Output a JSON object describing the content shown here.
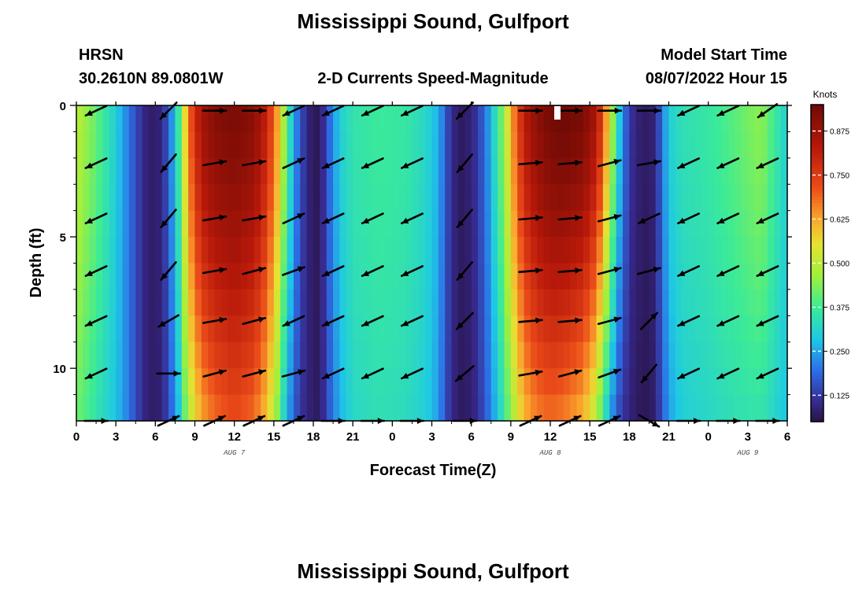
{
  "header": {
    "title": "Mississippi Sound, Gulfport",
    "station": "HRSN",
    "coords": "30.2610N  89.0801W",
    "subtitle": "2-D Currents Speed-Magnitude",
    "model_label": "Model Start Time",
    "model_time": "08/07/2022 Hour 15",
    "bottom_title": "Mississippi Sound, Gulfport"
  },
  "chart_data": {
    "type": "heatmap",
    "title": "2-D Currents Speed-Magnitude",
    "xlabel": "Forecast Time(Z)",
    "ylabel": "Depth (ft)",
    "x_range_hours": [
      0,
      54
    ],
    "y_range_ft": [
      0,
      12
    ],
    "y_inverted": true,
    "x_ticks": [
      "0",
      "3",
      "6",
      "9",
      "12",
      "15",
      "18",
      "21",
      "0",
      "3",
      "6",
      "9",
      "12",
      "15",
      "18",
      "21",
      "0",
      "3",
      "6"
    ],
    "y_ticks": [
      "0",
      "5",
      "10"
    ],
    "y_tick_values": [
      0,
      5,
      10
    ],
    "date_labels": [
      {
        "text": "AUG 7",
        "hour": 12
      },
      {
        "text": "AUG 8",
        "hour": 36
      },
      {
        "text": "AUG 9",
        "hour": 51
      }
    ],
    "colorbar": {
      "unit": "Knots",
      "min": 0.05,
      "max": 0.95,
      "ticks": [
        "0.125",
        "0.250",
        "0.375",
        "0.500",
        "0.625",
        "0.750",
        "0.875"
      ],
      "tick_values": [
        0.125,
        0.25,
        0.375,
        0.5,
        0.625,
        0.75,
        0.875
      ]
    },
    "speed_profile": {
      "hours": [
        0,
        1.5,
        3,
        3.8,
        4.5,
        5.3,
        6,
        6.6,
        7.2,
        7.7,
        8.2,
        8.8,
        9.5,
        10.5,
        12,
        13.5,
        14.5,
        15.2,
        15.8,
        16.4,
        17,
        17.6,
        18.2,
        18.7,
        19.3,
        20,
        21,
        23,
        25,
        26.5,
        27.5,
        28,
        28.5,
        29.3,
        30,
        30.6,
        31.2,
        31.8,
        32.5,
        33.2,
        34,
        35,
        36,
        37,
        38.5,
        39.5,
        40,
        40.5,
        41,
        41.5,
        42,
        42.5,
        43.5,
        44,
        44.5,
        45,
        46,
        48,
        50,
        52,
        54
      ],
      "surface": [
        0.5,
        0.41,
        0.3,
        0.22,
        0.15,
        0.09,
        0.07,
        0.11,
        0.22,
        0.34,
        0.55,
        0.74,
        0.86,
        0.91,
        0.93,
        0.9,
        0.8,
        0.65,
        0.46,
        0.28,
        0.16,
        0.09,
        0.06,
        0.1,
        0.2,
        0.3,
        0.35,
        0.37,
        0.36,
        0.32,
        0.26,
        0.18,
        0.1,
        0.07,
        0.09,
        0.14,
        0.22,
        0.33,
        0.46,
        0.66,
        0.82,
        0.9,
        0.94,
        0.95,
        0.93,
        0.85,
        0.72,
        0.55,
        0.36,
        0.22,
        0.13,
        0.09,
        0.07,
        0.1,
        0.2,
        0.3,
        0.34,
        0.36,
        0.4,
        0.45,
        0.3
      ],
      "bottom": [
        0.42,
        0.35,
        0.28,
        0.22,
        0.15,
        0.09,
        0.07,
        0.1,
        0.18,
        0.26,
        0.4,
        0.52,
        0.62,
        0.68,
        0.72,
        0.68,
        0.58,
        0.45,
        0.3,
        0.19,
        0.12,
        0.09,
        0.07,
        0.1,
        0.18,
        0.26,
        0.32,
        0.34,
        0.33,
        0.3,
        0.24,
        0.16,
        0.1,
        0.07,
        0.08,
        0.12,
        0.18,
        0.26,
        0.36,
        0.48,
        0.6,
        0.66,
        0.68,
        0.66,
        0.6,
        0.48,
        0.36,
        0.25,
        0.17,
        0.12,
        0.09,
        0.07,
        0.06,
        0.09,
        0.16,
        0.24,
        0.3,
        0.32,
        0.34,
        0.35,
        0.28
      ]
    },
    "vectors": {
      "depths_ft": [
        0.2,
        2.2,
        4.3,
        6.3,
        8.2,
        10.2,
        12.0
      ],
      "hours": [
        1.5,
        7,
        10.5,
        13.5,
        16.5,
        19.5,
        22.5,
        25.5,
        29.5,
        34.5,
        37.5,
        40.5,
        43.5,
        46.5,
        49.5,
        52.5
      ],
      "directions_note": "arrows point down-left (flood/ebb) or up-right; angle in degrees, 0 = east, positive = up (north)",
      "rows": [
        [
          -155,
          -135,
          0,
          0,
          -155,
          -155,
          -155,
          -155,
          -135,
          0,
          0,
          0,
          0,
          -155,
          -155,
          -145
        ],
        [
          -155,
          -130,
          10,
          10,
          25,
          -155,
          -155,
          -155,
          -130,
          5,
          5,
          15,
          10,
          -155,
          -155,
          -155
        ],
        [
          -155,
          -130,
          10,
          10,
          25,
          -155,
          -155,
          -155,
          -130,
          5,
          5,
          15,
          -155,
          -155,
          -155,
          -155
        ],
        [
          -155,
          -130,
          10,
          15,
          20,
          -155,
          -155,
          -155,
          -130,
          5,
          5,
          15,
          15,
          -155,
          -155,
          -155
        ],
        [
          -155,
          -150,
          10,
          15,
          -155,
          -155,
          -155,
          -155,
          -135,
          5,
          5,
          15,
          45,
          -155,
          -155,
          -155
        ],
        [
          -155,
          0,
          15,
          15,
          15,
          -155,
          -155,
          -155,
          -140,
          10,
          15,
          20,
          -130,
          -155,
          -155,
          -155
        ],
        [
          0,
          25,
          25,
          25,
          25,
          0,
          0,
          0,
          0,
          25,
          25,
          25,
          -30,
          0,
          0,
          0
        ]
      ]
    }
  }
}
